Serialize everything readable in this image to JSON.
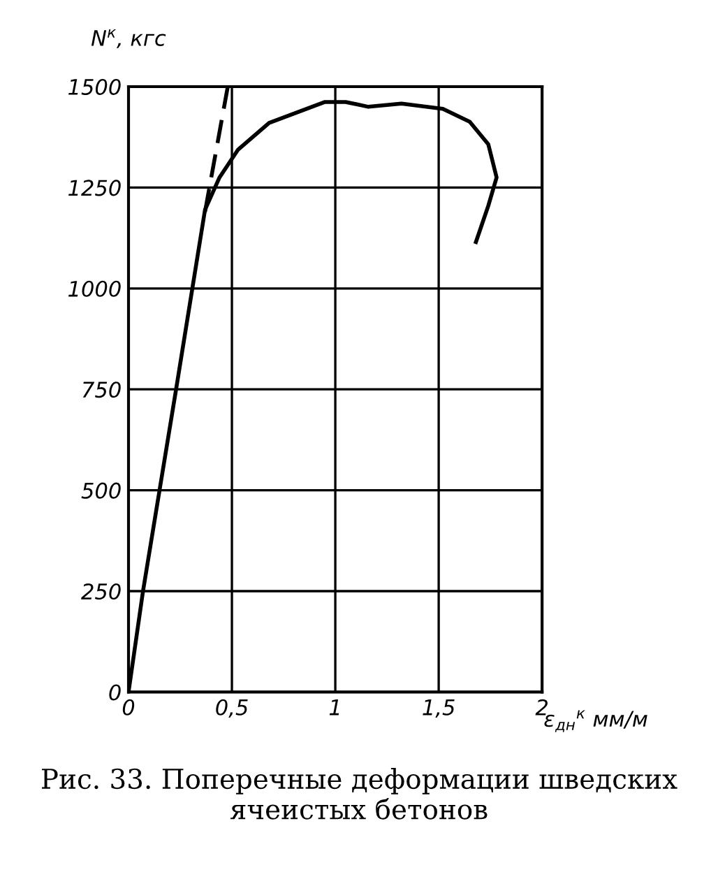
{
  "chart_data": {
    "type": "line",
    "xlabel": "ε$_{дн}$$^{к}$ мм/м",
    "ylabel": "N$^{к}$, кгс",
    "xlim": [
      0,
      2
    ],
    "ylim": [
      0,
      1500
    ],
    "xticks": [
      0,
      {
        "value": 0.5,
        "label": "0,5"
      },
      1,
      {
        "value": 1.5,
        "label": "1,5"
      },
      2
    ],
    "yticks": [
      0,
      250,
      500,
      750,
      1000,
      1250,
      1500
    ],
    "grid": true,
    "marker": "none",
    "series": [
      {
        "color": "#000000",
        "line_style": "solid",
        "x": [
          0,
          0.07,
          0.15,
          0.23,
          0.37,
          0.44,
          0.53,
          0.68,
          0.95,
          1.05,
          1.16,
          1.32,
          1.52,
          1.65,
          1.74,
          1.78,
          1.74,
          1.68
        ],
        "values": [
          0,
          250,
          500,
          750,
          1195,
          1275,
          1344,
          1410,
          1462,
          1462,
          1450,
          1458,
          1445,
          1413,
          1357,
          1275,
          1205,
          1115
        ]
      },
      {
        "color": "#000000",
        "line_style": "dashed",
        "x": [
          0.37,
          0.48
        ],
        "values": [
          1190,
          1500
        ]
      }
    ],
    "annotations": [
      "Рис. 33. Поперечные деформации шведских ячеистых бетонов"
    ]
  }
}
